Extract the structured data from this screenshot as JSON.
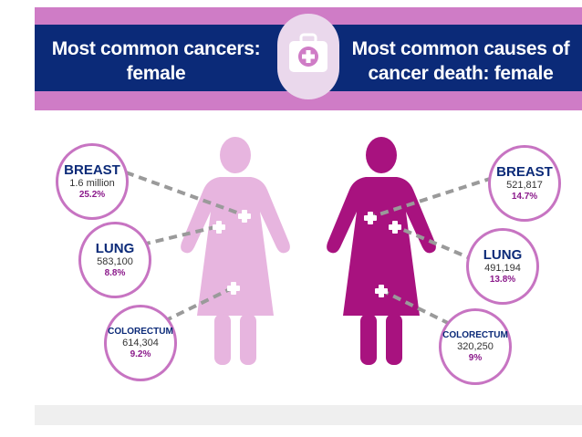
{
  "header": {
    "left_title": "Most common cancers: female",
    "right_title": "Most common causes of cancer death: female",
    "badge_icon": "medical-kit-icon"
  },
  "incidence": [
    {
      "cancer": "BREAST",
      "value": "1.6 million",
      "percent": "25.2%"
    },
    {
      "cancer": "LUNG",
      "value": "583,100",
      "percent": "8.8%"
    },
    {
      "cancer": "COLORECTUM",
      "value": "614,304",
      "percent": "9.2%"
    }
  ],
  "deaths": [
    {
      "cancer": "BREAST",
      "value": "521,817",
      "percent": "14.7%"
    },
    {
      "cancer": "LUNG",
      "value": "491,194",
      "percent": "13.8%"
    },
    {
      "cancer": "COLORECTUM",
      "value": "320,250",
      "percent": "9%"
    }
  ],
  "colors": {
    "header_blue": "#0b2a78",
    "band_pink": "#cf7cc6",
    "figure_light": "#e7b5df",
    "figure_dark": "#a8127f",
    "bubble_border": "#c774c2",
    "connector_gray": "#9a9a9a"
  }
}
